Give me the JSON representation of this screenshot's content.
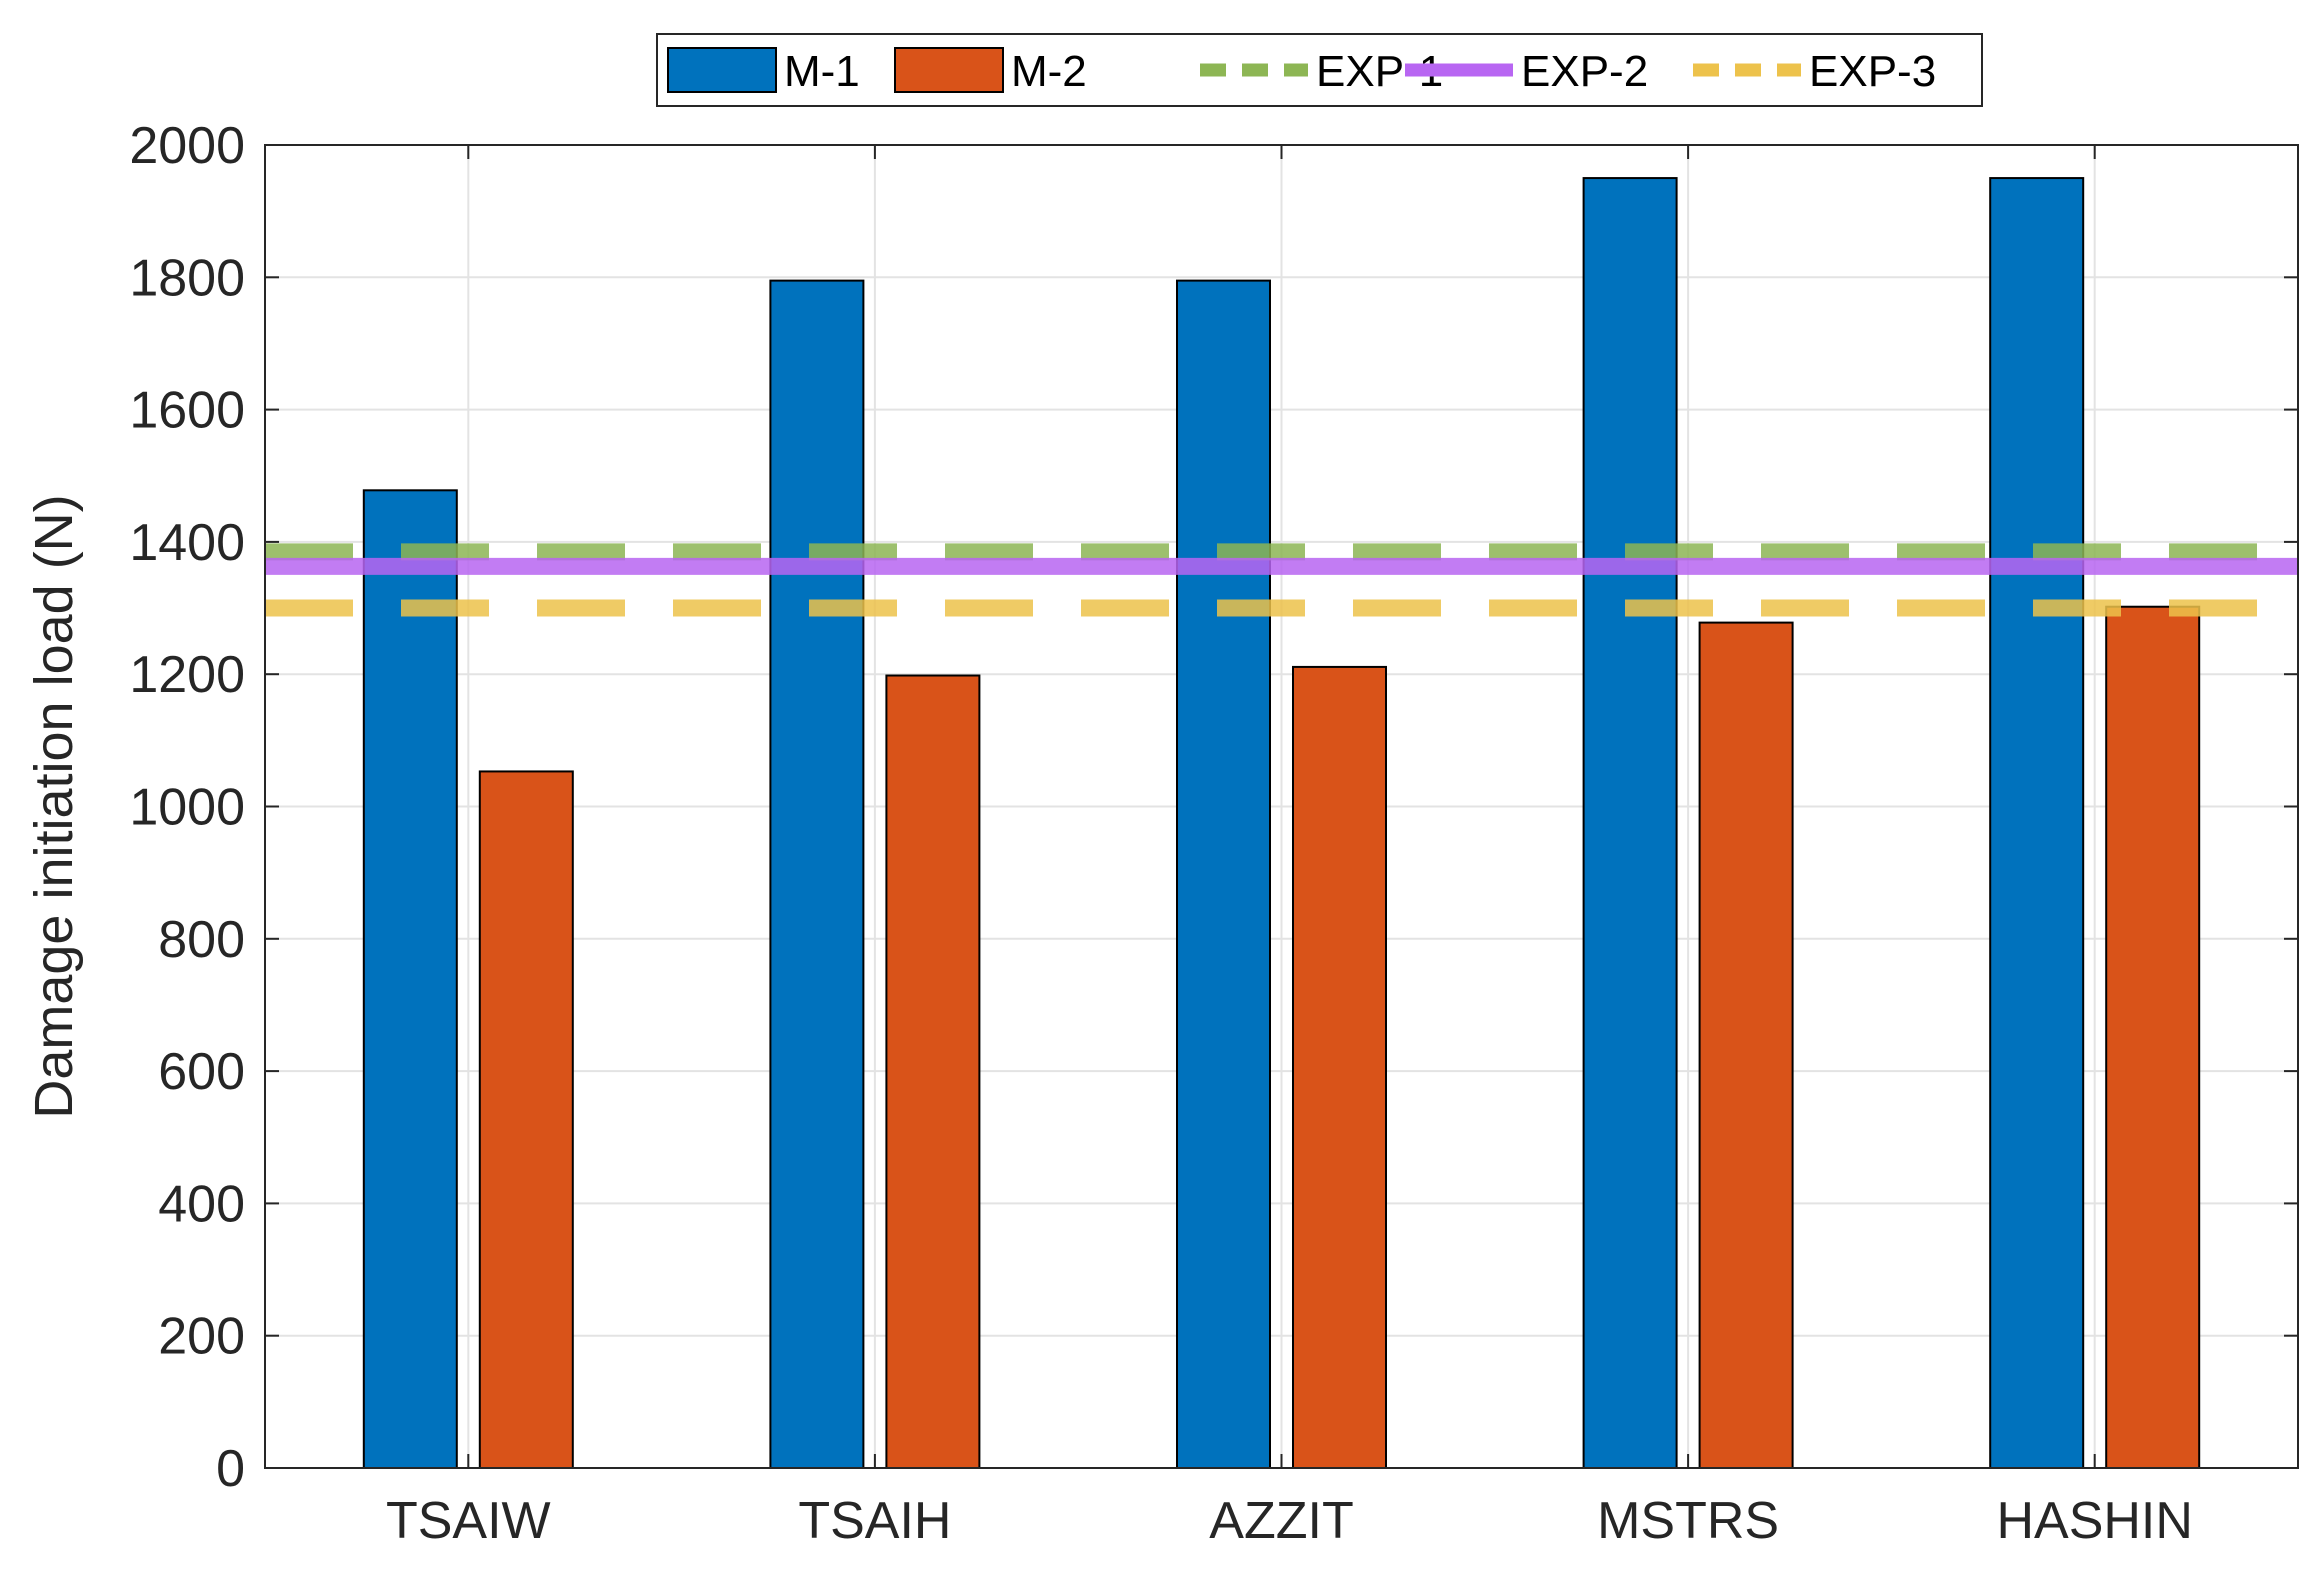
{
  "chart_data": {
    "type": "bar",
    "title": "",
    "xlabel": "",
    "ylabel": "Damage initiation load (N)",
    "categories": [
      "TSAIW",
      "TSAIH",
      "AZZIT",
      "MSTRS",
      "HASHIN"
    ],
    "ylim": [
      0,
      2000
    ],
    "yticks": [
      0,
      200,
      400,
      600,
      800,
      1000,
      1200,
      1400,
      1600,
      1800,
      2000
    ],
    "grid": true,
    "legend_position": "top-center",
    "series": [
      {
        "name": "M-1",
        "color": "#0072BD",
        "values": [
          1478,
          1795,
          1795,
          1950,
          1950
        ]
      },
      {
        "name": "M-2",
        "color": "#D95319",
        "values": [
          1053,
          1198,
          1211,
          1278,
          1302
        ]
      }
    ],
    "reference_lines": [
      {
        "name": "EXP-1",
        "value": 1385,
        "color": "#8DB654",
        "style": "dashed"
      },
      {
        "name": "EXP-2",
        "value": 1363,
        "color": "#B866F2",
        "style": "solid"
      },
      {
        "name": "EXP-3",
        "value": 1300,
        "color": "#EDC24B",
        "style": "dashed"
      }
    ]
  }
}
